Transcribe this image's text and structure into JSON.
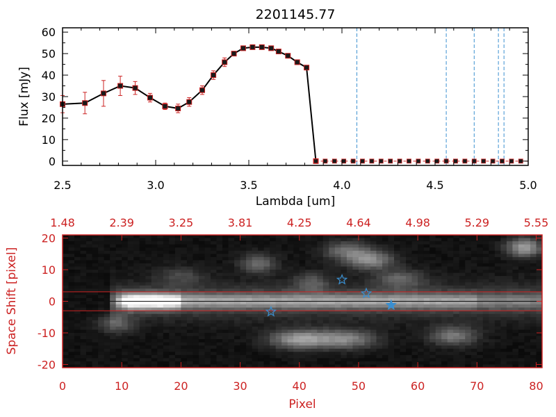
{
  "colors": {
    "axis": "#000000",
    "accent_red": "#cc2222",
    "marker_fill": "#1a1a1a",
    "dashed_line": "#3a8fd0",
    "star": "#3a8fd0",
    "image_bg": "#0a0a0a"
  },
  "chart_data": [
    {
      "type": "line",
      "title": "2201145.77",
      "xlabel": "Lambda [um]",
      "ylabel": "Flux [mJy]",
      "xlim": [
        2.5,
        5.0
      ],
      "ylim": [
        -2,
        62
      ],
      "x_ticks": [
        "2.5",
        "3.0",
        "3.5",
        "4.0",
        "4.5",
        "5.0"
      ],
      "x_tick_values": [
        2.5,
        3.0,
        3.5,
        4.0,
        4.5,
        5.0
      ],
      "y_ticks": [
        "0",
        "10",
        "20",
        "30",
        "40",
        "50",
        "60"
      ],
      "y_tick_values": [
        0,
        10,
        20,
        30,
        40,
        50,
        60
      ],
      "grid": false,
      "series": [
        {
          "x": [
            2.5,
            2.62,
            2.72,
            2.81,
            2.89,
            2.97,
            3.05,
            3.12,
            3.18,
            3.25,
            3.31,
            3.37,
            3.42,
            3.47,
            3.52,
            3.57,
            3.62,
            3.66,
            3.71,
            3.76,
            3.81,
            3.86
          ],
          "y": [
            26.5,
            27.0,
            31.5,
            35.0,
            34.0,
            29.5,
            25.5,
            24.5,
            27.5,
            33.0,
            40.0,
            46.0,
            50.0,
            52.5,
            53.0,
            53.0,
            52.5,
            51.0,
            49.0,
            46.0,
            43.5,
            0.0
          ],
          "err": [
            4,
            5,
            6,
            4.5,
            3,
            2,
            1.5,
            2,
            2,
            2,
            2,
            2,
            1,
            1,
            0.8,
            0.8,
            0.8,
            1,
            1,
            1,
            1,
            0
          ]
        },
        {
          "x": [
            3.86,
            3.91,
            3.96,
            4.01,
            4.06,
            4.11,
            4.16,
            4.21,
            4.26,
            4.31,
            4.36,
            4.41,
            4.46,
            4.51,
            4.56,
            4.61,
            4.66,
            4.71,
            4.76,
            4.81,
            4.86,
            4.91,
            4.96
          ],
          "y": [
            0,
            0,
            0,
            0,
            0,
            0,
            0,
            0,
            0,
            0,
            0,
            0,
            0,
            0,
            0,
            0,
            0,
            0,
            0,
            0,
            0,
            0,
            0
          ]
        }
      ],
      "vlines": [
        4.08,
        4.56,
        4.71,
        4.84,
        4.87
      ],
      "hline_dashed": 0
    },
    {
      "type": "heatmap",
      "xlabel": "Pixel",
      "ylabel": "Space Shift [pixel]",
      "xlim": [
        0,
        81
      ],
      "ylim": [
        -21,
        21
      ],
      "x_ticks": [
        "0",
        "10",
        "20",
        "30",
        "40",
        "50",
        "60",
        "70",
        "80"
      ],
      "x_tick_values": [
        0,
        10,
        20,
        30,
        40,
        50,
        60,
        70,
        80
      ],
      "y_ticks": [
        "-20",
        "-10",
        "0",
        "10",
        "20"
      ],
      "y_tick_values": [
        -20,
        -10,
        0,
        10,
        20
      ],
      "top_ticks": [
        "1.48",
        "2.39",
        "3.25",
        "3.81",
        "4.25",
        "4.64",
        "4.98",
        "5.29",
        "5.55"
      ],
      "top_tick_values": [
        0,
        10,
        20,
        30,
        40,
        50,
        60,
        70,
        80
      ],
      "hlines": [
        3,
        0,
        -3
      ],
      "trace": {
        "start": 8,
        "end": 81,
        "center": 0,
        "width": 2.4,
        "peak_x": 11,
        "peak_value": 1.0
      },
      "blobs": [
        {
          "x": 33,
          "y": 12,
          "sx": 3,
          "sy": 3,
          "v": 0.35
        },
        {
          "x": 42,
          "y": 6,
          "sx": 3,
          "sy": 3,
          "v": 0.25
        },
        {
          "x": 48,
          "y": 16,
          "sx": 4,
          "sy": 3,
          "v": 0.35
        },
        {
          "x": 52,
          "y": 13,
          "sx": 4,
          "sy": 3,
          "v": 0.45
        },
        {
          "x": 57,
          "y": 7,
          "sx": 4,
          "sy": 3,
          "v": 0.3
        },
        {
          "x": 78,
          "y": 17,
          "sx": 3,
          "sy": 3,
          "v": 0.55
        },
        {
          "x": 40,
          "y": -12,
          "sx": 5,
          "sy": 3,
          "v": 0.55
        },
        {
          "x": 48,
          "y": -12,
          "sx": 5,
          "sy": 3,
          "v": 0.45
        },
        {
          "x": 66,
          "y": -11,
          "sx": 4,
          "sy": 3,
          "v": 0.4
        },
        {
          "x": 9,
          "y": -7,
          "sx": 3,
          "sy": 3,
          "v": 0.3
        },
        {
          "x": 20,
          "y": 8,
          "sx": 4,
          "sy": 3,
          "v": 0.2
        }
      ],
      "stars": [
        {
          "x": 35.2,
          "y": -3.3,
          "filled": false
        },
        {
          "x": 47.2,
          "y": 6.8,
          "filled": false
        },
        {
          "x": 51.3,
          "y": 2.5,
          "filled": false
        },
        {
          "x": 55.5,
          "y": -1.2,
          "filled": true
        }
      ]
    }
  ]
}
